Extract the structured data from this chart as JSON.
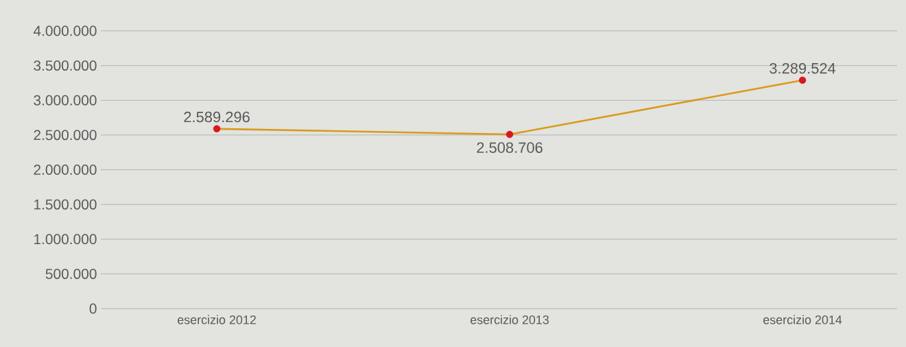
{
  "chart_data": {
    "type": "line",
    "categories": [
      "esercizio 2012",
      "esercizio 2013",
      "esercizio 2014"
    ],
    "series": [
      {
        "color": "#d99a1c",
        "colors": [
          "#d7191f",
          "#d7191f",
          "#d7191f"
        ],
        "values": [
          2589296,
          2508706,
          3289524
        ],
        "value_labels": [
          "2.589.296",
          "2.508.706",
          "3.289.524"
        ]
      }
    ],
    "ylim": [
      0,
      4000000
    ],
    "yticks": [
      {
        "value": 0,
        "label": "0"
      },
      {
        "value": 500000,
        "label": "500.000"
      },
      {
        "value": 1000000,
        "label": "1.000.000"
      },
      {
        "value": 1500000,
        "label": "1.500.000"
      },
      {
        "value": 2000000,
        "label": "2.000.000"
      },
      {
        "value": 2500000,
        "label": "2.500.000"
      },
      {
        "value": 3000000,
        "label": "3.000.000"
      },
      {
        "value": 3500000,
        "label": "3.500.000"
      },
      {
        "value": 4000000,
        "label": "4.000.000"
      }
    ],
    "grid": "y",
    "marker": "circle",
    "line_style": "solid"
  }
}
